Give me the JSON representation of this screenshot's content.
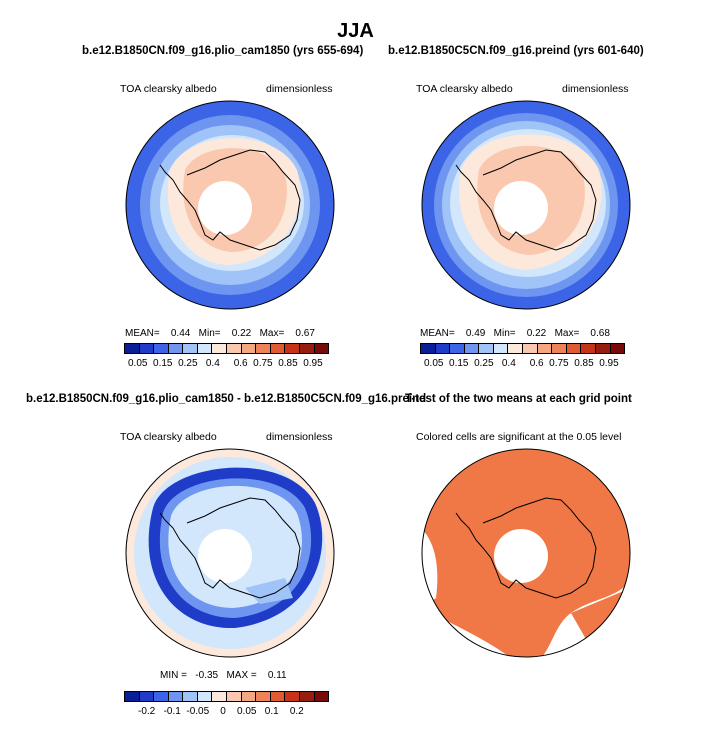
{
  "figure": {
    "season": "JJA",
    "panel1": {
      "title": "b.e12.B1850CN.f09_g16.plio_cam1850 (yrs 655-694)",
      "variable": "TOA clearsky albedo",
      "units": "dimensionless",
      "stats": {
        "mean_label": "MEAN=",
        "mean": "0.44",
        "min_label": "Min=",
        "min": "0.22",
        "max_label": "Max=",
        "max": "0.67"
      }
    },
    "panel2": {
      "title": "b.e12.B1850C5CN.f09_g16.preind (yrs 601-640)",
      "variable": "TOA clearsky albedo",
      "units": "dimensionless",
      "stats": {
        "mean_label": "MEAN=",
        "mean": "0.49",
        "min_label": "Min=",
        "min": "0.22",
        "max_label": "Max=",
        "max": "0.68"
      }
    },
    "panel3": {
      "title": "b.e12.B1850CN.f09_g16.plio_cam1850 - b.e12.B1850C5CN.f09_g16.preind",
      "variable": "TOA clearsky albedo",
      "units": "dimensionless",
      "stats": {
        "min_label": "MIN =",
        "min": "-0.35",
        "max_label": "MAX =",
        "max": "0.11"
      }
    },
    "panel4": {
      "title": "T-test of the two means at each grid point",
      "subtitle": "Colored cells are significant at the 0.05 level"
    },
    "colorbar_abs": {
      "labels": [
        "0.05",
        "0.15",
        "0.25",
        "0.4",
        "0.6",
        "0.75",
        "0.85",
        "0.95"
      ],
      "colors": [
        "#0a1e96",
        "#1e3cc8",
        "#3c64e6",
        "#6e96f0",
        "#a0c3f8",
        "#d2e6fc",
        "#fde8dc",
        "#f9c8ae",
        "#f4a882",
        "#ee8258",
        "#e05a32",
        "#c83218",
        "#961e10",
        "#780a0a"
      ]
    },
    "colorbar_diff": {
      "labels": [
        "-0.2",
        "-0.1",
        "-0.05",
        "0",
        "0.05",
        "0.1",
        "0.2"
      ],
      "colors": [
        "#0a1e96",
        "#1e3cc8",
        "#3c64e6",
        "#6e96f0",
        "#a0c3f8",
        "#d2e6fc",
        "#fde8dc",
        "#f9c8ae",
        "#f4a882",
        "#ee8258",
        "#e05a32",
        "#c83218",
        "#961e10",
        "#780a0a"
      ]
    },
    "map_colors": {
      "outer": "#3c64e6",
      "ring2": "#6e96f0",
      "ring3": "#a0c3f8",
      "ring4": "#d2e6fc",
      "land1": "#fde8dc",
      "land2": "#f9c8ae",
      "diff_bg": "#d2e6fc",
      "diff_band": "#1e3cc8",
      "diff_band2": "#6e96f0",
      "sig": "#f07846"
    }
  }
}
